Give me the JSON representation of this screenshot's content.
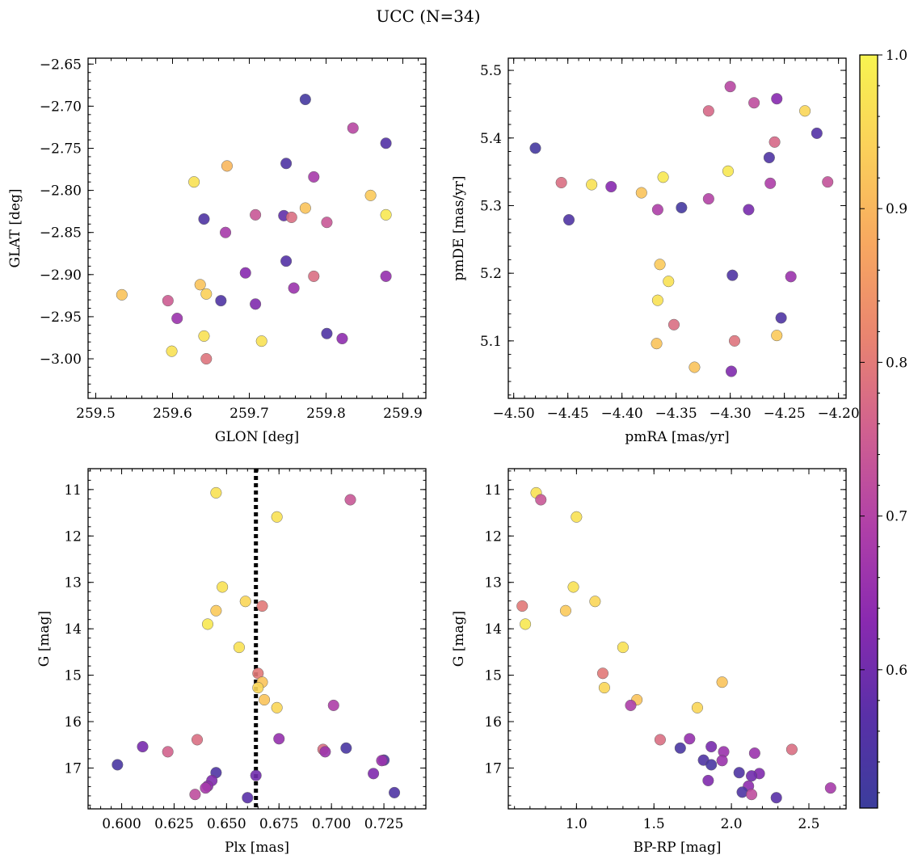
{
  "figure": {
    "title": "UCC (N=34)",
    "colorbar": {
      "min": 0.51,
      "max": 1.0,
      "ticks": [
        "0.6",
        "0.7",
        "0.8",
        "0.9",
        "1.0"
      ],
      "tick_values": [
        0.6,
        0.7,
        0.8,
        0.9,
        1.0
      ],
      "colormap": "plasma",
      "colormap_stops": [
        "#3b3d9c",
        "#5a30a8",
        "#8a2ab0",
        "#b040a8",
        "#d06090",
        "#e98470",
        "#f8a860",
        "#fbd05a",
        "#f7f450"
      ]
    }
  },
  "chart_data": [
    {
      "type": "scatter",
      "id": "glon_glat",
      "xlabel": "GLON [deg]",
      "ylabel": "GLAT [deg]",
      "xlim": [
        259.49,
        259.93
      ],
      "ylim": [
        -3.047,
        -2.643
      ],
      "y_inverted": false,
      "xticks": [
        "259.5",
        "259.6",
        "259.7",
        "259.8",
        "259.9"
      ],
      "xtick_values": [
        259.5,
        259.6,
        259.7,
        259.8,
        259.9
      ],
      "yticks": [
        "−2.65",
        "−2.70",
        "−2.75",
        "−2.80",
        "−2.85",
        "−2.90",
        "−2.95",
        "−3.00"
      ],
      "ytick_values": [
        -2.65,
        -2.7,
        -2.75,
        -2.8,
        -2.85,
        -2.9,
        -2.95,
        -3.0
      ],
      "x": [
        259.773,
        259.835,
        259.878,
        259.748,
        259.628,
        259.671,
        259.784,
        259.858,
        259.773,
        259.878,
        259.641,
        259.708,
        259.745,
        259.755,
        259.801,
        259.669,
        259.748,
        259.695,
        259.784,
        259.878,
        259.758,
        259.534,
        259.636,
        259.644,
        259.663,
        259.594,
        259.708,
        259.606,
        259.641,
        259.801,
        259.716,
        259.821,
        259.599,
        259.644
      ],
      "y": [
        -2.692,
        -2.726,
        -2.744,
        -2.768,
        -2.79,
        -2.771,
        -2.784,
        -2.806,
        -2.821,
        -2.829,
        -2.834,
        -2.829,
        -2.83,
        -2.832,
        -2.838,
        -2.85,
        -2.884,
        -2.898,
        -2.902,
        -2.902,
        -2.916,
        -2.924,
        -2.912,
        -2.923,
        -2.931,
        -2.931,
        -2.935,
        -2.952,
        -2.973,
        -2.97,
        -2.979,
        -2.976,
        -2.991,
        -3.0
      ],
      "c": [
        0.53,
        0.71,
        0.56,
        0.55,
        0.97,
        0.9,
        0.68,
        0.93,
        0.92,
        0.98,
        0.55,
        0.74,
        0.58,
        0.78,
        0.74,
        0.68,
        0.56,
        0.63,
        0.78,
        0.65,
        0.66,
        0.92,
        0.92,
        0.94,
        0.55,
        0.75,
        0.62,
        0.66,
        0.97,
        0.55,
        0.97,
        0.64,
        0.97,
        0.79
      ]
    },
    {
      "type": "scatter",
      "id": "pm",
      "xlabel": "pmRA [mas/yr]",
      "ylabel": "pmDE [mas/yr]",
      "xlim": [
        -4.505,
        -4.193
      ],
      "ylim": [
        5.015,
        5.518
      ],
      "y_inverted": false,
      "xticks": [
        "−4.50",
        "−4.45",
        "−4.40",
        "−4.35",
        "−4.30",
        "−4.25",
        "−4.20"
      ],
      "xtick_values": [
        -4.5,
        -4.45,
        -4.4,
        -4.35,
        -4.3,
        -4.25,
        -4.2
      ],
      "yticks": [
        "5.1",
        "5.2",
        "5.3",
        "5.4",
        "5.5"
      ],
      "ytick_values": [
        5.1,
        5.2,
        5.3,
        5.4,
        5.5
      ],
      "x": [
        -4.3,
        -4.278,
        -4.257,
        -4.32,
        -4.231,
        -4.22,
        -4.259,
        -4.264,
        -4.48,
        -4.302,
        -4.362,
        -4.21,
        -4.456,
        -4.428,
        -4.41,
        -4.382,
        -4.32,
        -4.263,
        -4.367,
        -4.345,
        -4.283,
        -4.449,
        -4.365,
        -4.357,
        -4.298,
        -4.244,
        -4.367,
        -4.253,
        -4.352,
        -4.257,
        -4.296,
        -4.368,
        -4.333,
        -4.299
      ],
      "y": [
        5.476,
        5.452,
        5.458,
        5.44,
        5.44,
        5.407,
        5.394,
        5.371,
        5.385,
        5.351,
        5.342,
        5.335,
        5.334,
        5.331,
        5.328,
        5.319,
        5.31,
        5.333,
        5.294,
        5.297,
        5.294,
        5.279,
        5.213,
        5.188,
        5.197,
        5.195,
        5.16,
        5.134,
        5.124,
        5.108,
        5.1,
        5.096,
        5.061,
        5.055
      ],
      "c": [
        0.71,
        0.72,
        0.63,
        0.77,
        0.95,
        0.56,
        0.77,
        0.55,
        0.53,
        0.98,
        0.98,
        0.73,
        0.78,
        0.97,
        0.63,
        0.92,
        0.7,
        0.69,
        0.69,
        0.53,
        0.61,
        0.55,
        0.93,
        0.97,
        0.55,
        0.66,
        0.97,
        0.55,
        0.78,
        0.93,
        0.79,
        0.92,
        0.92,
        0.62
      ]
    },
    {
      "type": "scatter",
      "id": "cmd_plx",
      "xlabel": "Plx [mas]",
      "ylabel": "G [mag]",
      "xlim": [
        0.584,
        0.745
      ],
      "ylim": [
        17.88,
        10.55
      ],
      "y_inverted": true,
      "xticks": [
        "0.600",
        "0.625",
        "0.650",
        "0.675",
        "0.700",
        "0.725"
      ],
      "xtick_values": [
        0.6,
        0.625,
        0.65,
        0.675,
        0.7,
        0.725
      ],
      "yticks": [
        "11",
        "12",
        "13",
        "14",
        "15",
        "16",
        "17"
      ],
      "ytick_values": [
        11,
        12,
        13,
        14,
        15,
        16,
        17
      ],
      "vline": 0.664,
      "x": [
        0.645,
        0.709,
        0.674,
        0.648,
        0.659,
        0.645,
        0.667,
        0.641,
        0.656,
        0.665,
        0.667,
        0.665,
        0.668,
        0.674,
        0.701,
        0.675,
        0.636,
        0.61,
        0.598,
        0.622,
        0.696,
        0.697,
        0.707,
        0.725,
        0.724,
        0.72,
        0.645,
        0.643,
        0.641,
        0.64,
        0.635,
        0.664,
        0.66,
        0.73
      ],
      "y": [
        11.07,
        11.22,
        11.59,
        13.1,
        13.41,
        13.61,
        13.51,
        13.9,
        14.4,
        14.96,
        15.15,
        15.27,
        15.53,
        15.7,
        15.65,
        16.37,
        16.39,
        16.54,
        16.93,
        16.65,
        16.6,
        16.65,
        16.57,
        16.83,
        16.84,
        17.12,
        17.1,
        17.27,
        17.39,
        17.43,
        17.57,
        17.16,
        17.64,
        17.53
      ],
      "c": [
        0.97,
        0.74,
        0.97,
        0.97,
        0.95,
        0.93,
        0.8,
        0.98,
        0.97,
        0.8,
        0.92,
        0.95,
        0.92,
        0.95,
        0.69,
        0.65,
        0.78,
        0.61,
        0.54,
        0.76,
        0.78,
        0.66,
        0.54,
        0.55,
        0.66,
        0.62,
        0.55,
        0.62,
        0.64,
        0.68,
        0.72,
        0.6,
        0.57,
        0.55
      ]
    },
    {
      "type": "scatter",
      "id": "cmd_color",
      "xlabel": "BP-RP [mag]",
      "ylabel": "G [mag]",
      "xlim": [
        0.56,
        2.74
      ],
      "ylim": [
        17.88,
        10.55
      ],
      "y_inverted": true,
      "xticks": [
        "1.0",
        "1.5",
        "2.0",
        "2.5"
      ],
      "xtick_values": [
        1.0,
        1.5,
        2.0,
        2.5
      ],
      "yticks": [
        "11",
        "12",
        "13",
        "14",
        "15",
        "16",
        "17"
      ],
      "ytick_values": [
        11,
        12,
        13,
        14,
        15,
        16,
        17
      ],
      "x": [
        0.74,
        0.77,
        1.0,
        0.98,
        1.12,
        0.93,
        0.65,
        0.67,
        1.3,
        1.17,
        1.94,
        1.18,
        1.39,
        1.78,
        1.35,
        1.73,
        1.54,
        1.87,
        1.67,
        1.95,
        2.39,
        2.15,
        1.82,
        1.94,
        1.87,
        2.05,
        2.18,
        1.85,
        2.11,
        2.64,
        2.07,
        2.13,
        2.29,
        2.13
      ],
      "y": [
        11.07,
        11.22,
        11.59,
        13.1,
        13.41,
        13.61,
        13.51,
        13.9,
        14.4,
        14.96,
        15.15,
        15.27,
        15.53,
        15.7,
        15.65,
        16.37,
        16.39,
        16.54,
        16.57,
        16.65,
        16.6,
        16.68,
        16.83,
        16.84,
        16.93,
        17.1,
        17.12,
        17.27,
        17.39,
        17.43,
        17.52,
        17.17,
        17.64,
        17.57
      ],
      "c": [
        0.97,
        0.74,
        0.97,
        0.97,
        0.95,
        0.93,
        0.8,
        0.98,
        0.97,
        0.8,
        0.92,
        0.95,
        0.92,
        0.95,
        0.69,
        0.65,
        0.78,
        0.61,
        0.54,
        0.66,
        0.78,
        0.66,
        0.55,
        0.66,
        0.54,
        0.55,
        0.62,
        0.62,
        0.64,
        0.68,
        0.55,
        0.6,
        0.57,
        0.72
      ]
    }
  ]
}
